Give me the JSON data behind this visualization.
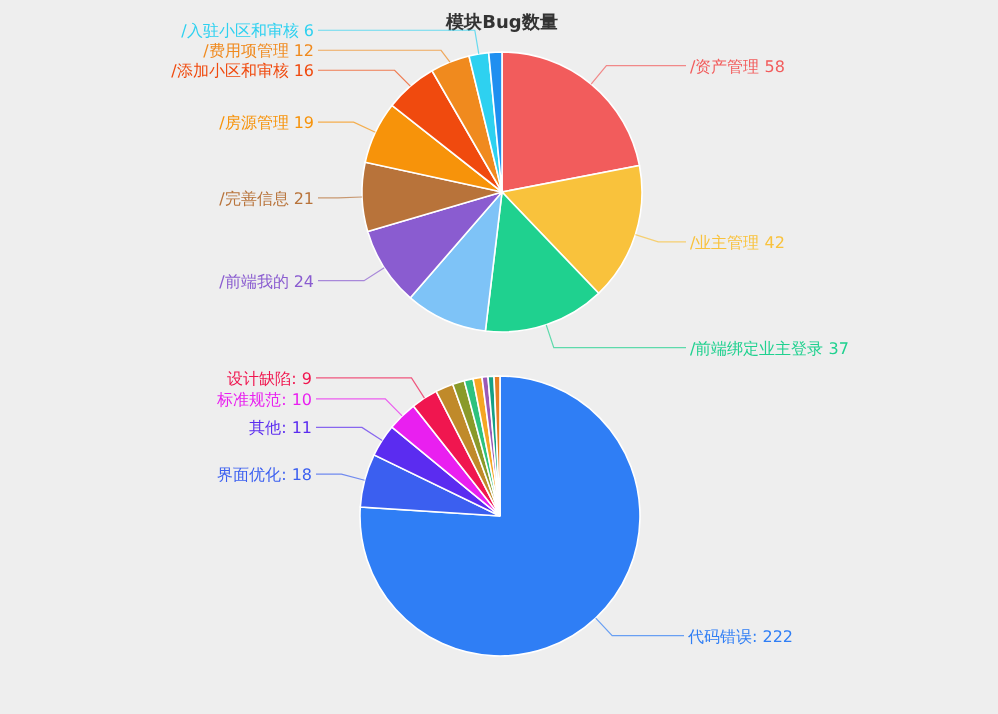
{
  "chart_data": [
    {
      "type": "pie",
      "title": "模块Bug数量",
      "categories": [
        "/资产管理",
        "/业主管理",
        "/前端绑定业主登录",
        null,
        "/前端我的",
        "/完善信息",
        "/房源管理",
        "/添加小区和审核",
        "/费用项管理",
        "/入驻小区和审核",
        null
      ],
      "values": [
        58,
        42,
        37,
        25,
        24,
        21,
        19,
        16,
        12,
        6,
        4
      ],
      "value_labels": [
        "58",
        "42",
        "37",
        null,
        "24",
        "21",
        "19",
        "16",
        "12",
        "6",
        null
      ],
      "colors": [
        "#f25c5c",
        "#f9c23c",
        "#1fd18f",
        "#7ec3f7",
        "#8a5cd0",
        "#b8733a",
        "#f7930a",
        "#f04a0e",
        "#f08a1e",
        "#2ed1f0",
        "#1f8ff0"
      ]
    },
    {
      "type": "pie",
      "categories": [
        "代码错误",
        "界面优化",
        "其他",
        "标准规范",
        "设计缺陷",
        null,
        null,
        null,
        null,
        null,
        null,
        null
      ],
      "values": [
        222,
        18,
        11,
        10,
        9,
        6,
        4,
        3,
        3,
        2,
        2,
        2
      ],
      "value_labels": [
        "222",
        "18",
        "11",
        "10",
        "9",
        null,
        null,
        null,
        null,
        null,
        null,
        null
      ],
      "colors": [
        "#2f7ef5",
        "#3b5ff0",
        "#5b2cf0",
        "#e91ff0",
        "#f0164f",
        "#c08a2a",
        "#8a9a2a",
        "#2ec27e",
        "#f5a623",
        "#9b59b6",
        "#16a085",
        "#e67e22"
      ]
    }
  ]
}
